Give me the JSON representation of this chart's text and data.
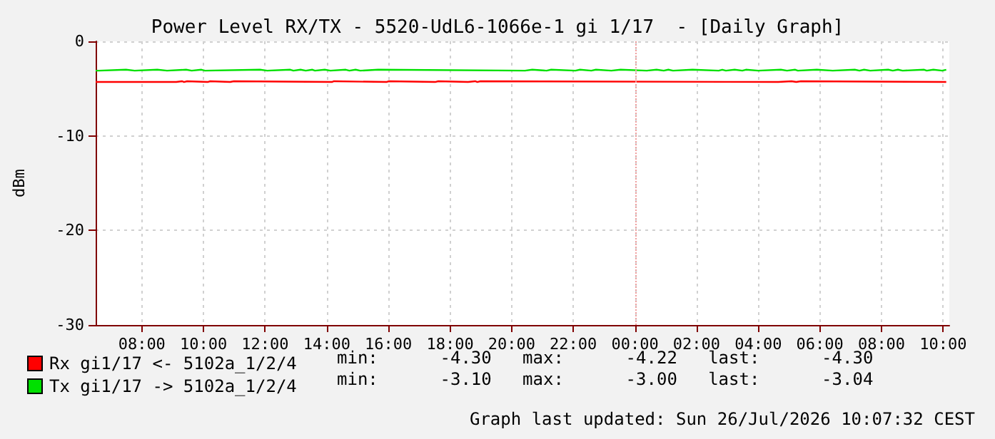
{
  "chart_data": {
    "type": "step",
    "title": "Power Level RX/TX - 5520-UdL6-1066e-1 gi 1/17  - [Daily Graph]",
    "ylabel": "dBm",
    "xlim": [
      "2026-07-25T06:30",
      "2026-07-26T10:12"
    ],
    "xticks": [
      {
        "value": "2026-07-25T08:00",
        "label": "08:00"
      },
      {
        "value": "2026-07-25T10:00",
        "label": "10:00"
      },
      {
        "value": "2026-07-25T12:00",
        "label": "12:00"
      },
      {
        "value": "2026-07-25T14:00",
        "label": "14:00"
      },
      {
        "value": "2026-07-25T16:00",
        "label": "16:00"
      },
      {
        "value": "2026-07-25T18:00",
        "label": "18:00"
      },
      {
        "value": "2026-07-25T20:00",
        "label": "20:00"
      },
      {
        "value": "2026-07-25T22:00",
        "label": "22:00"
      },
      {
        "value": "2026-07-26T00:00",
        "label": "00:00"
      },
      {
        "value": "2026-07-26T02:00",
        "label": "02:00"
      },
      {
        "value": "2026-07-26T04:00",
        "label": "04:00"
      },
      {
        "value": "2026-07-26T06:00",
        "label": "06:00"
      },
      {
        "value": "2026-07-26T08:00",
        "label": "08:00"
      },
      {
        "value": "2026-07-26T10:00",
        "label": "10:00"
      }
    ],
    "ylim": [
      -30,
      0
    ],
    "yticks": [
      0,
      -10,
      -20,
      -30
    ],
    "grid": true,
    "legend": "bottom left",
    "marker": "none",
    "ref_lines": [
      {
        "axis": "x",
        "value": "2026-07-26T00:00",
        "color": "#f0a0a0",
        "line_style": "dotted"
      }
    ],
    "series": [
      {
        "name": "Rx gi1/17 <- 5102a_1/2/4",
        "color": "#ff0000",
        "x": [
          "2026-07-25T06:30",
          "2026-07-25T09:07",
          "2026-07-25T09:18",
          "2026-07-25T09:22",
          "2026-07-25T09:28",
          "2026-07-25T10:08",
          "2026-07-25T10:13",
          "2026-07-25T10:52",
          "2026-07-25T10:59",
          "2026-07-25T14:10",
          "2026-07-25T14:14",
          "2026-07-25T15:56",
          "2026-07-25T16:01",
          "2026-07-25T17:31",
          "2026-07-25T17:37",
          "2026-07-25T18:35",
          "2026-07-25T18:49",
          "2026-07-25T18:53",
          "2026-07-25T18:59",
          "2026-07-26T04:39",
          "2026-07-26T05:05",
          "2026-07-26T05:14",
          "2026-07-26T05:23",
          "2026-07-26T10:06"
        ],
        "values": [
          -4.3,
          -4.22,
          -4.3,
          -4.22,
          -4.3,
          -4.22,
          -4.3,
          -4.22,
          -4.3,
          -4.22,
          -4.3,
          -4.22,
          -4.3,
          -4.22,
          -4.3,
          -4.22,
          -4.3,
          -4.22,
          -4.3,
          -4.22,
          -4.3,
          -4.22,
          -4.3,
          -4.3
        ]
      },
      {
        "name": "Tx gi1/17 -> 5102a_1/2/4",
        "color": "#00e000",
        "x": [
          "2026-07-25T06:30",
          "2026-07-25T06:37",
          "2026-07-25T07:29",
          "2026-07-25T07:46",
          "2026-07-25T08:30",
          "2026-07-25T08:49",
          "2026-07-25T09:26",
          "2026-07-25T09:37",
          "2026-07-25T09:56",
          "2026-07-25T10:03",
          "2026-07-25T11:50",
          "2026-07-25T12:04",
          "2026-07-25T12:49",
          "2026-07-25T12:55",
          "2026-07-25T13:09",
          "2026-07-25T13:19",
          "2026-07-25T13:32",
          "2026-07-25T13:37",
          "2026-07-25T13:56",
          "2026-07-25T14:07",
          "2026-07-25T14:37",
          "2026-07-25T14:44",
          "2026-07-25T14:56",
          "2026-07-25T15:05",
          "2026-07-25T15:40",
          "2026-07-25T20:26",
          "2026-07-25T20:40",
          "2026-07-25T21:08",
          "2026-07-25T21:17",
          "2026-07-25T22:04",
          "2026-07-25T22:13",
          "2026-07-25T22:35",
          "2026-07-25T22:44",
          "2026-07-25T23:14",
          "2026-07-25T23:32",
          "2026-07-26T00:23",
          "2026-07-26T00:42",
          "2026-07-26T00:56",
          "2026-07-26T01:05",
          "2026-07-26T01:14",
          "2026-07-26T01:52",
          "2026-07-26T02:43",
          "2026-07-26T02:50",
          "2026-07-26T02:57",
          "2026-07-26T03:14",
          "2026-07-26T03:29",
          "2026-07-26T03:36",
          "2026-07-26T04:00",
          "2026-07-26T04:44",
          "2026-07-26T04:56",
          "2026-07-26T05:12",
          "2026-07-26T05:17",
          "2026-07-26T05:54",
          "2026-07-26T06:25",
          "2026-07-26T07:08",
          "2026-07-26T07:17",
          "2026-07-26T07:26",
          "2026-07-26T07:38",
          "2026-07-26T08:13",
          "2026-07-26T08:22",
          "2026-07-26T08:32",
          "2026-07-26T08:41",
          "2026-07-26T09:23",
          "2026-07-26T09:28",
          "2026-07-26T09:41",
          "2026-07-26T09:58",
          "2026-07-26T10:06"
        ],
        "values": [
          -3.1,
          -3.0,
          -3.1,
          -3.0,
          -3.1,
          -3.0,
          -3.1,
          -3.0,
          -3.1,
          -3.0,
          -3.1,
          -3.0,
          -3.1,
          -3.0,
          -3.1,
          -3.0,
          -3.1,
          -3.0,
          -3.1,
          -3.0,
          -3.1,
          -3.0,
          -3.1,
          -3.0,
          -3.1,
          -3.0,
          -3.1,
          -3.0,
          -3.1,
          -3.0,
          -3.1,
          -3.0,
          -3.1,
          -3.0,
          -3.1,
          -3.0,
          -3.1,
          -3.0,
          -3.1,
          -3.0,
          -3.1,
          -3.0,
          -3.1,
          -3.0,
          -3.1,
          -3.0,
          -3.1,
          -3.0,
          -3.1,
          -3.0,
          -3.1,
          -3.0,
          -3.1,
          -3.0,
          -3.1,
          -3.0,
          -3.1,
          -3.0,
          -3.1,
          -3.0,
          -3.1,
          -3.0,
          -3.1,
          -3.0,
          -3.1,
          -3.0,
          -3.04
        ]
      }
    ],
    "annotations": [
      "min:      -4.30   max:      -4.22   last:      -4.30",
      "min:      -3.10   max:      -3.00   last:      -3.04",
      "Graph last updated: Sun 26/Jul/2026 10:07:32 CEST"
    ]
  }
}
